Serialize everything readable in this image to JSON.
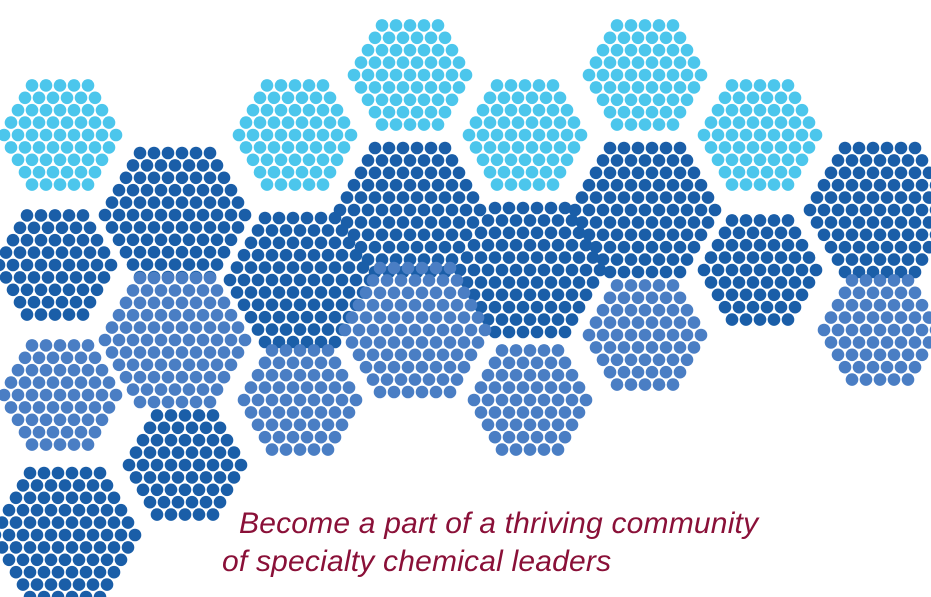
{
  "tagline": {
    "line1": "Become a part of a thriving community",
    "line2": "of specialty chemical leaders"
  },
  "colors": {
    "light_blue": "#4cc6ec",
    "dark_blue": "#1a5ea8",
    "mid_blue": "#4a7ec4",
    "tagline": "#8a1038",
    "background": "#ffffff"
  },
  "artwork": {
    "description_icon": "hexagon-dot-pattern"
  }
}
